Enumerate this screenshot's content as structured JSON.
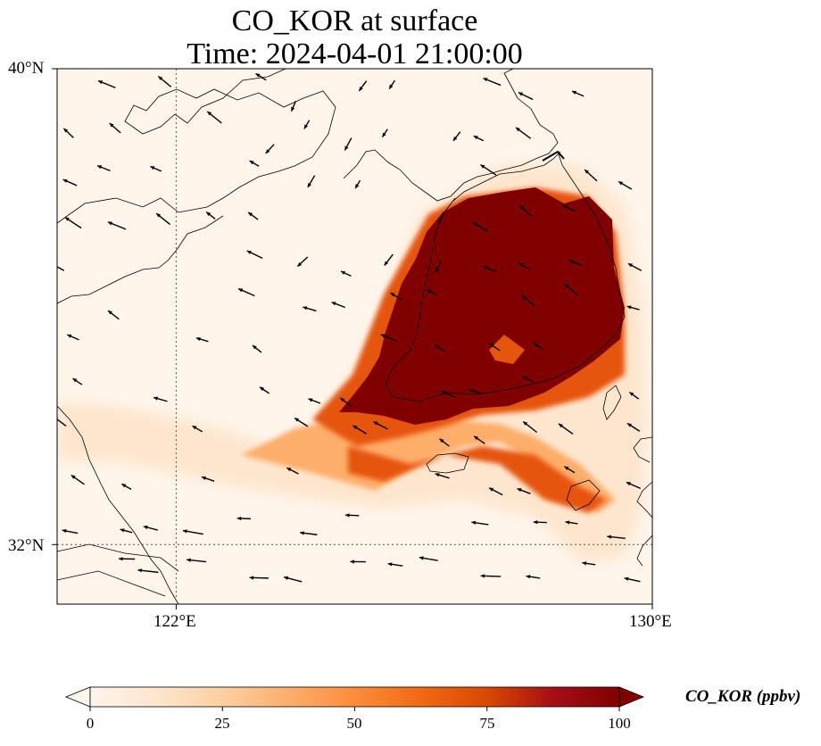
{
  "title": {
    "line1": "CO_KOR at surface",
    "line2": "Time: 2024-04-01 21:00:00"
  },
  "map": {
    "extent": {
      "lon_min": 120.0,
      "lon_max": 130.0,
      "lat_min": 31.0,
      "lat_max": 40.0
    },
    "lat_ticks": [
      {
        "value": 40,
        "label": "40°N"
      },
      {
        "value": 32,
        "label": "32°N"
      }
    ],
    "lon_ticks": [
      {
        "value": 122,
        "label": "122°E"
      },
      {
        "value": 130,
        "label": "130°E"
      }
    ],
    "gridlines": {
      "lat": 32,
      "lon": 122,
      "style": "dotted"
    },
    "background_color": "#fff5eb",
    "plume_colors": {
      "low": "#fee6ce",
      "mid": "#fdae6b",
      "high": "#e6550d",
      "max": "#800000"
    }
  },
  "colorbar": {
    "label": "CO_KOR (ppbv)",
    "min": 0,
    "max": 100,
    "ticks": [
      "0",
      "25",
      "50",
      "75",
      "100"
    ],
    "extend": "both",
    "colormap_stops": [
      "#fff5eb",
      "#fee6ce",
      "#fdd0a2",
      "#fdae6b",
      "#fd8d3c",
      "#f16913",
      "#d94801",
      "#a50f15",
      "#800000"
    ]
  }
}
